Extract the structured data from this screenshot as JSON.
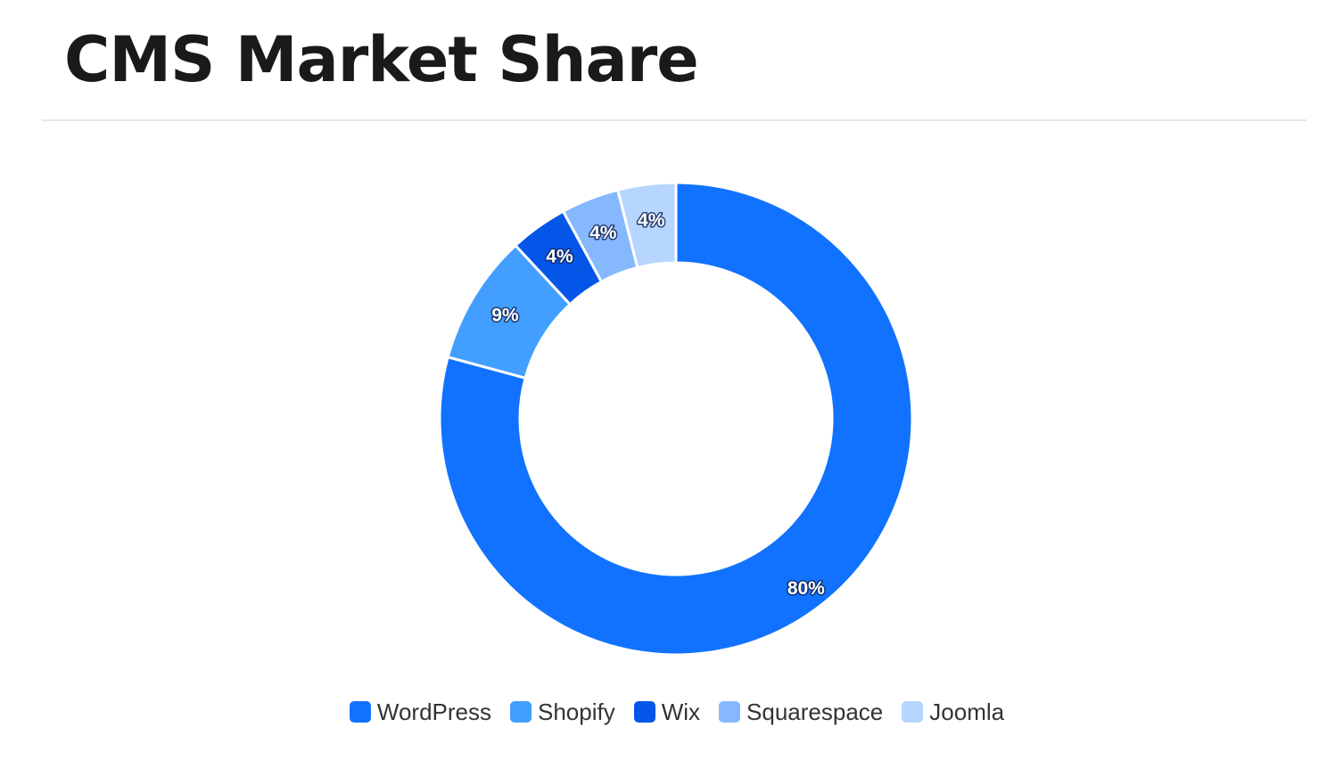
{
  "page": {
    "title": "CMS Market Share"
  },
  "chart_data": {
    "type": "pie",
    "donut": true,
    "start_angle_deg": 0,
    "direction": "clockwise",
    "legend_position": "bottom",
    "categories": [
      "WordPress",
      "Shopify",
      "Wix",
      "Squarespace",
      "Joomla"
    ],
    "values": [
      80,
      9,
      4,
      4,
      4
    ],
    "labels": [
      "80%",
      "9%",
      "4%",
      "4%",
      "4%"
    ],
    "colors": [
      "#1072FF",
      "#429FFF",
      "#0356E8",
      "#85B8FF",
      "#B6D6FF"
    ]
  }
}
